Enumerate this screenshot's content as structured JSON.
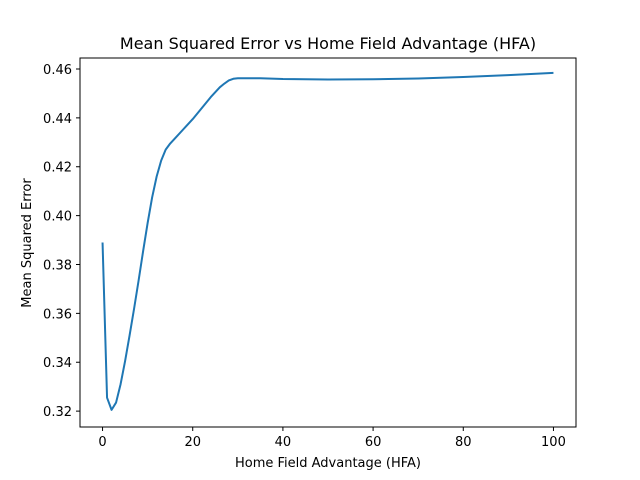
{
  "chart_data": {
    "type": "line",
    "title": "Mean Squared Error vs Home Field Advantage (HFA)",
    "xlabel": "Home Field Advantage (HFA)",
    "ylabel": "Mean Squared Error",
    "xlim": [
      -5,
      105
    ],
    "ylim": [
      0.3135,
      0.4645
    ],
    "xticks": [
      0,
      20,
      40,
      60,
      80,
      100
    ],
    "xtick_labels": [
      "0",
      "20",
      "40",
      "60",
      "80",
      "100"
    ],
    "yticks": [
      0.32,
      0.34,
      0.36,
      0.38,
      0.4,
      0.42,
      0.44,
      0.46
    ],
    "ytick_labels": [
      "0.32",
      "0.34",
      "0.36",
      "0.38",
      "0.40",
      "0.42",
      "0.44",
      "0.46"
    ],
    "grid": false,
    "series": [
      {
        "color": "#1f77b4",
        "x": [
          0,
          1,
          2,
          3,
          4,
          5,
          6,
          7,
          8,
          9,
          10,
          11,
          12,
          13,
          14,
          15,
          16,
          18,
          20,
          22,
          24,
          25,
          26,
          27,
          28,
          29,
          30,
          35,
          40,
          50,
          60,
          70,
          80,
          90,
          100
        ],
        "y": [
          0.389,
          0.3255,
          0.3205,
          0.3235,
          0.331,
          0.3405,
          0.351,
          0.362,
          0.3735,
          0.3855,
          0.397,
          0.4075,
          0.416,
          0.4225,
          0.427,
          0.4295,
          0.4315,
          0.4355,
          0.4395,
          0.444,
          0.4485,
          0.4505,
          0.4525,
          0.454,
          0.4553,
          0.456,
          0.4562,
          0.4562,
          0.4559,
          0.4557,
          0.4558,
          0.4561,
          0.4567,
          0.4575,
          0.4584
        ]
      }
    ]
  }
}
